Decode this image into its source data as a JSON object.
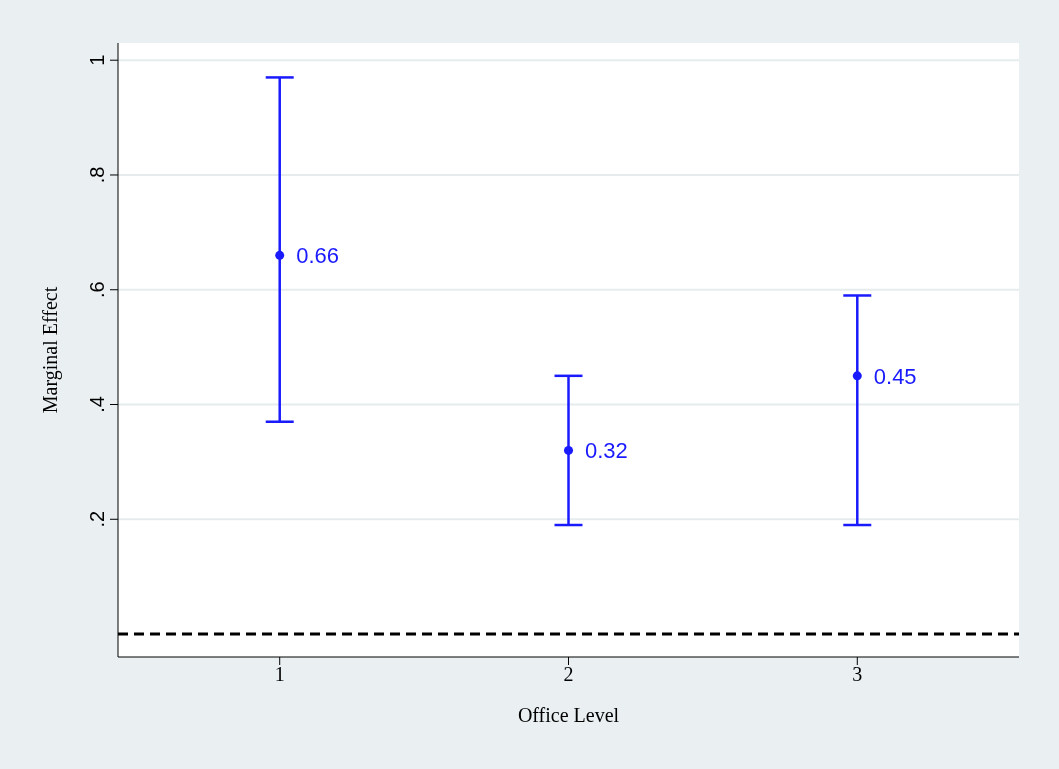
{
  "chart_data": {
    "type": "scatter",
    "xlabel": "Office Level",
    "ylabel": "Marginal Effect",
    "x": [
      1,
      2,
      3
    ],
    "series": [
      {
        "color": "#1a1aff",
        "values": [
          0.66,
          0.32,
          0.45
        ],
        "errors": [
          [
            0.37,
            0.97
          ],
          [
            0.19,
            0.45
          ],
          [
            0.19,
            0.59
          ]
        ]
      }
    ],
    "data_labels": true,
    "marker": "circle",
    "xlim": [
      0.44,
      3.56
    ],
    "xticks": [
      1,
      2,
      3
    ],
    "ylim": [
      -0.04,
      1.03
    ],
    "yticks": [
      {
        "value": 0.2,
        "label": ".2"
      },
      {
        "value": 0.4,
        "label": ".4"
      },
      {
        "value": 0.6,
        "label": ".6"
      },
      {
        "value": 0.8,
        "label": ".8"
      },
      {
        "value": 1,
        "label": "1"
      }
    ],
    "grid": "y",
    "ref_lines": [
      {
        "axis": "y",
        "value": 0,
        "color": "#000000",
        "line_style": "dashed"
      }
    ]
  }
}
